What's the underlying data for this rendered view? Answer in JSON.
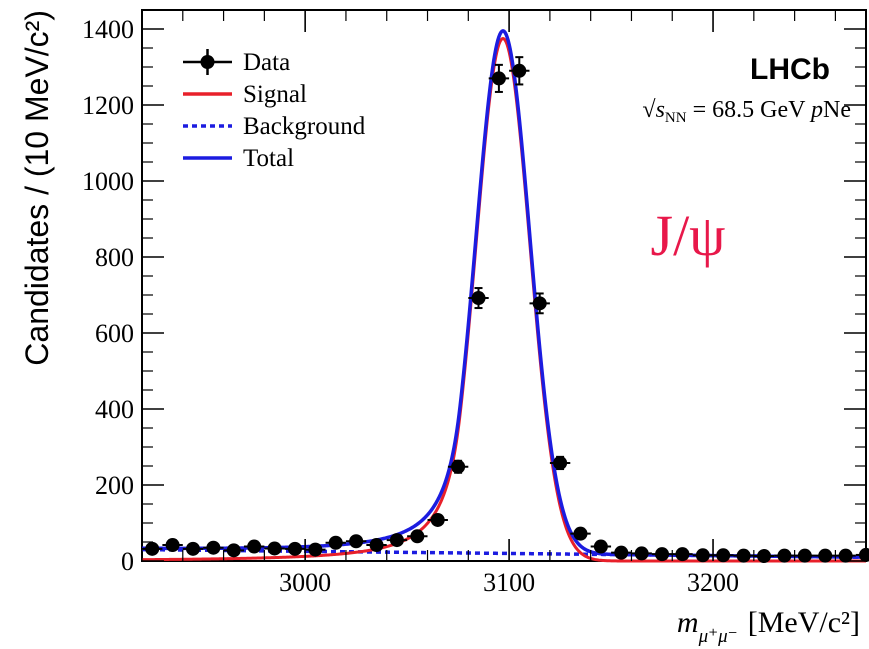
{
  "chart_data": {
    "type": "scatter",
    "title": "",
    "ylabel": "Candidates / (10 MeV/c²)",
    "xlabel": "m_{μ⁺μ⁻} [MeV/c²]",
    "xlabel_parts": {
      "m": "m",
      "sub": "μ⁺μ⁻",
      "unit": "[MeV/c²]"
    },
    "xlim": [
      2920,
      3275
    ],
    "ylim": [
      0,
      1450
    ],
    "xticks": [
      3000,
      3100,
      3200
    ],
    "yticks": [
      0,
      200,
      400,
      600,
      800,
      1000,
      1200,
      1400
    ],
    "experiment_label": "LHCb",
    "energy_label": {
      "sqrt": "√",
      "s": "s",
      "sub": "NN",
      "rest": " = 68.5 GeV ",
      "p": "p",
      "ne": "Ne"
    },
    "particle_label": "J/ψ",
    "legend": {
      "position": "top-left",
      "entries": [
        {
          "label": "Data",
          "style": "marker"
        },
        {
          "label": "Signal",
          "style": "solid",
          "color": "#e8202a"
        },
        {
          "label": "Background",
          "style": "dotted",
          "color": "#1c1ce0"
        },
        {
          "label": "Total",
          "style": "solid",
          "color": "#1c1ce0"
        }
      ]
    },
    "data_points": {
      "x": [
        2925,
        2935,
        2945,
        2955,
        2965,
        2975,
        2985,
        2995,
        3005,
        3015,
        3025,
        3035,
        3045,
        3055,
        3065,
        3075,
        3085,
        3095,
        3105,
        3115,
        3125,
        3135,
        3145,
        3155,
        3165,
        3175,
        3185,
        3195,
        3205,
        3215,
        3225,
        3235,
        3245,
        3255,
        3265,
        3275
      ],
      "y": [
        32,
        42,
        32,
        35,
        28,
        38,
        33,
        32,
        30,
        48,
        52,
        42,
        55,
        65,
        108,
        248,
        692,
        1270,
        1290,
        678,
        258,
        72,
        38,
        22,
        20,
        18,
        18,
        15,
        15,
        14,
        13,
        14,
        14,
        14,
        14,
        16
      ],
      "x_err": 5
    },
    "signal_model": {
      "mean": 3097,
      "sigma_core": 13.2,
      "peak": 1375,
      "tail_alpha": 1.6,
      "tail_n": 2.0,
      "color": "#e8202a"
    },
    "background_model": {
      "at_xmin": 30,
      "at_xmax": 10,
      "color": "#1c1ce0"
    },
    "total_color": "#1c1ce0",
    "particle_color": "#e8184a"
  }
}
